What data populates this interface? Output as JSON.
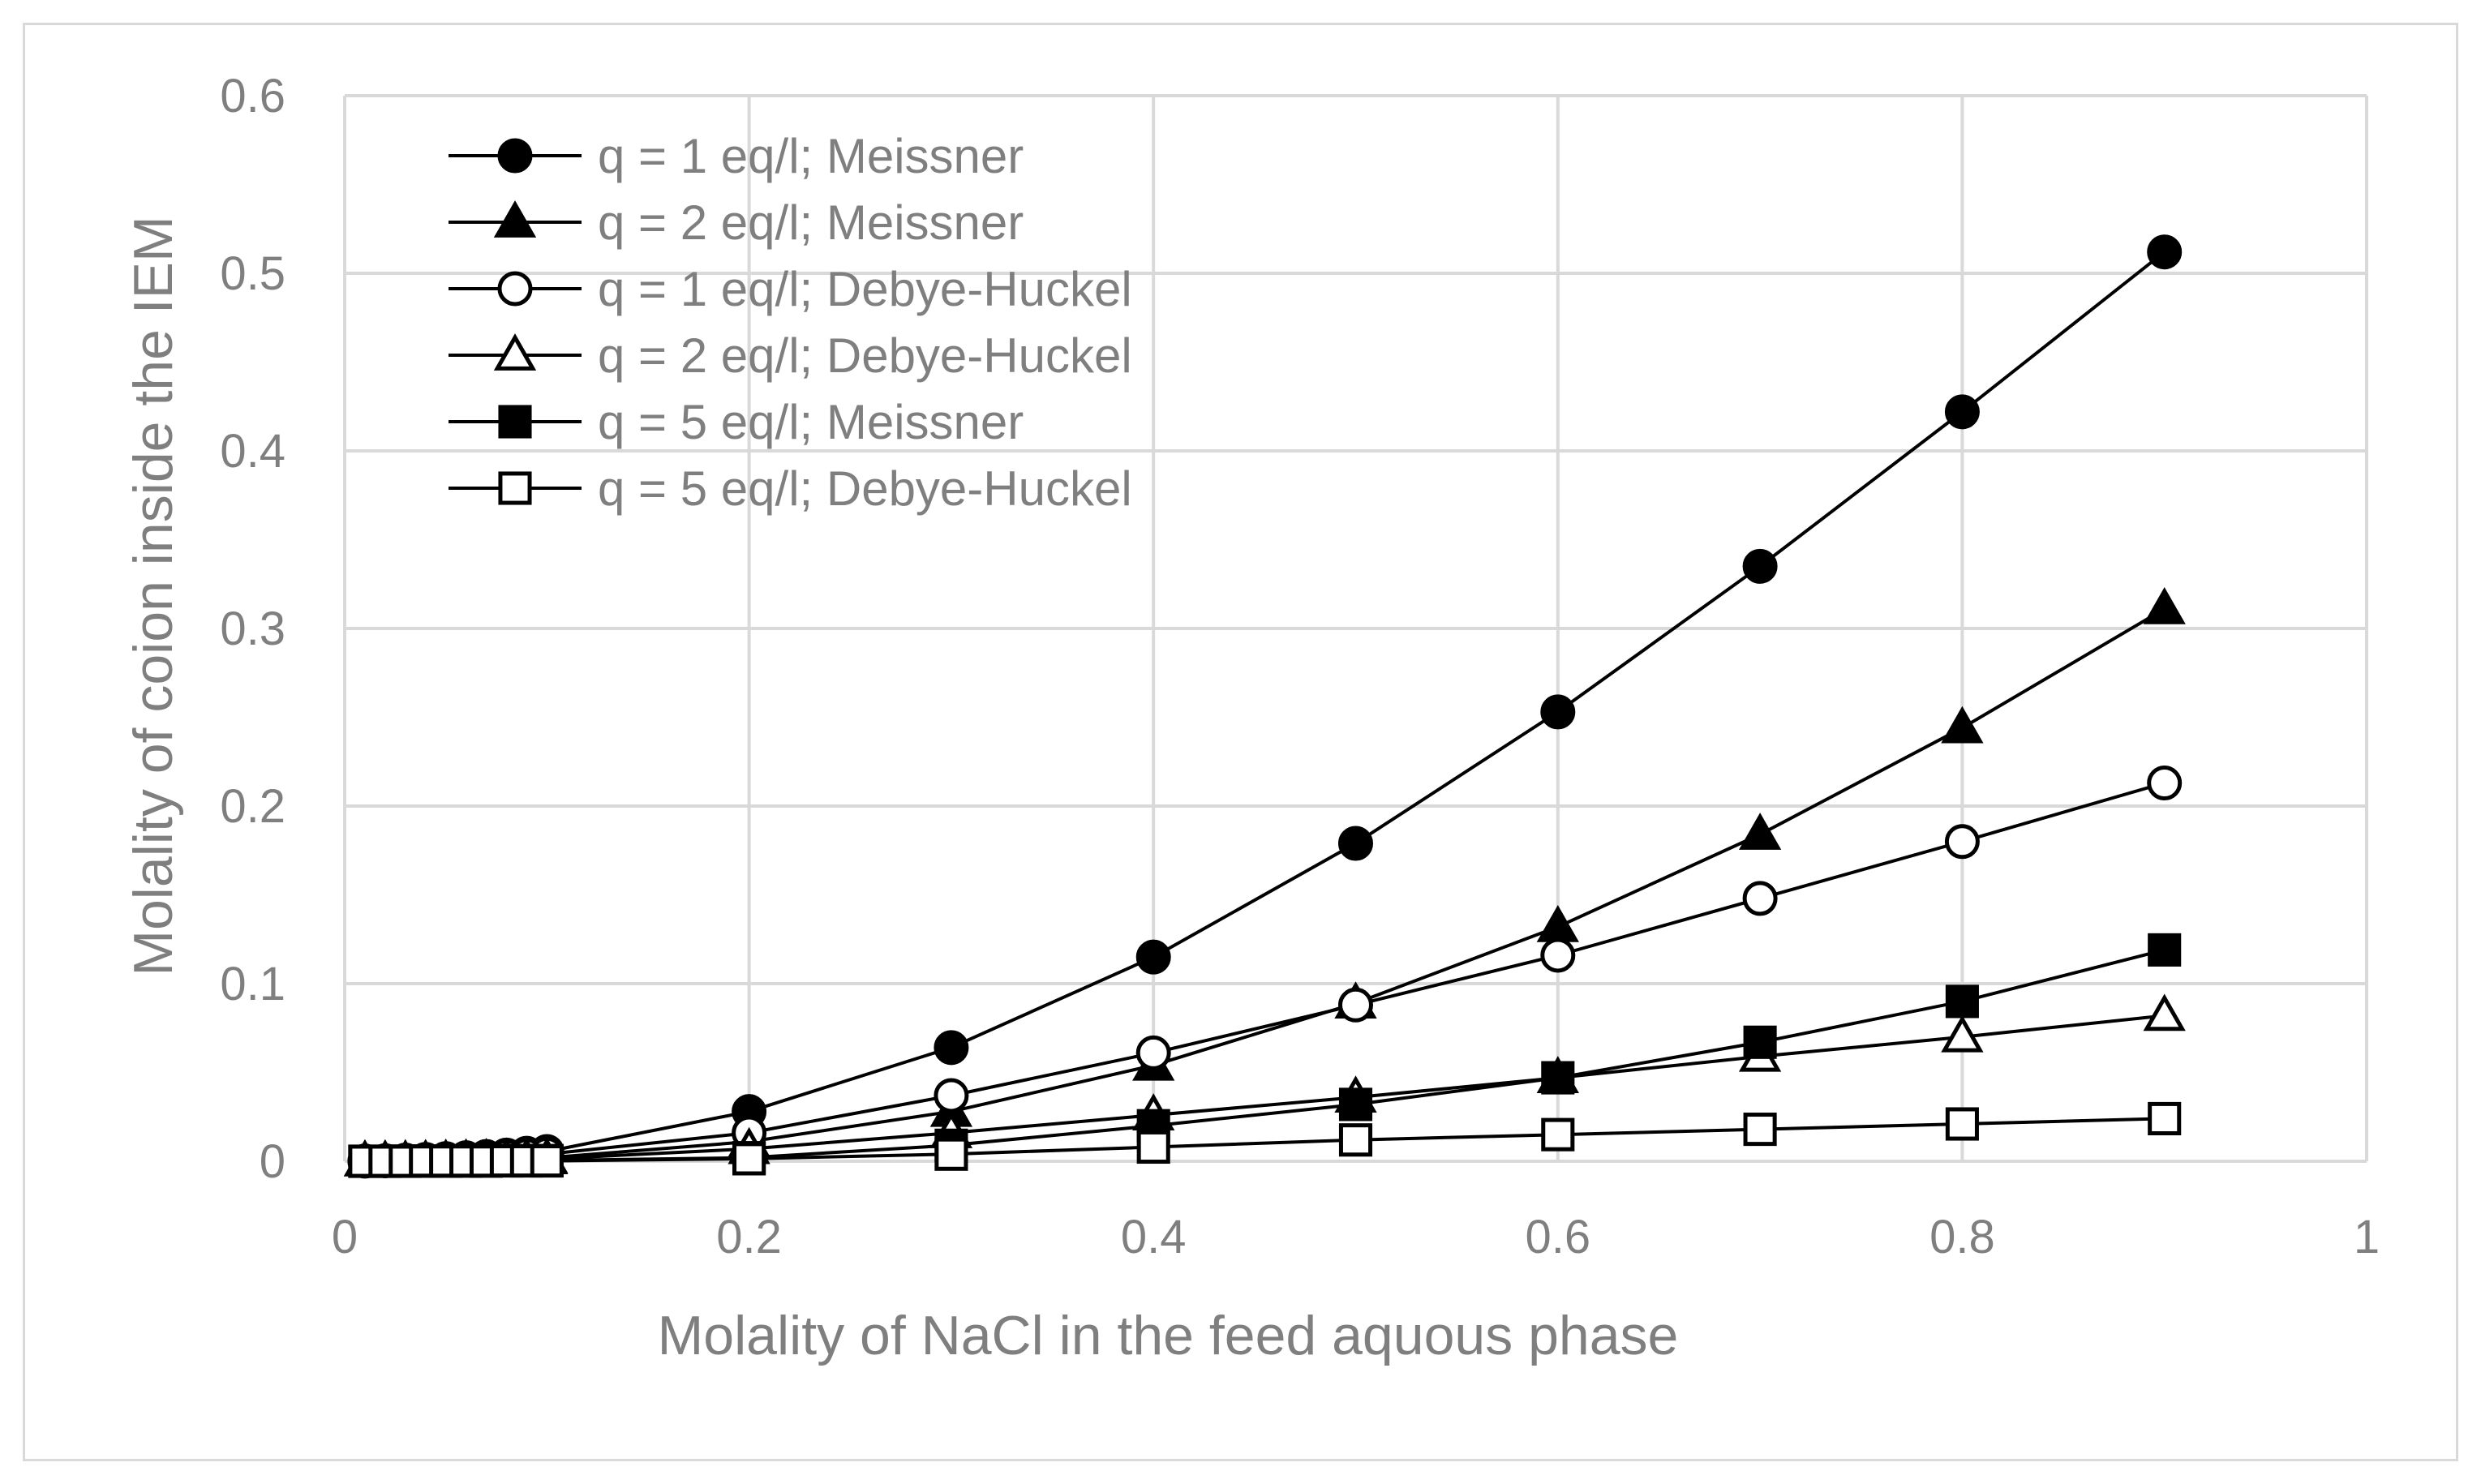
{
  "chart_data": {
    "type": "scatter",
    "title": "",
    "xlabel": "Molality of NaCl in the feed aquous phase",
    "ylabel": "Molality of coion inside the IEM",
    "xlim": [
      0,
      1
    ],
    "ylim": [
      0,
      0.6
    ],
    "xticks": [
      0,
      0.2,
      0.4,
      0.6,
      0.8,
      1
    ],
    "xtick_labels": [
      "0",
      "0.2",
      "0.4",
      "0.6",
      "0.8",
      "1"
    ],
    "yticks": [
      0,
      0.1,
      0.2,
      0.3,
      0.4,
      0.5,
      0.6
    ],
    "ytick_labels": [
      "0",
      "0.1",
      "0.2",
      "0.3",
      "0.4",
      "0.5",
      "0.6"
    ],
    "grid": true,
    "legend_position": "top-left",
    "series": [
      {
        "name": "q = 1 eq/l; Meissner",
        "marker": "circle",
        "filled": true,
        "x": [
          0.01,
          0.02,
          0.03,
          0.04,
          0.05,
          0.06,
          0.07,
          0.08,
          0.09,
          0.1,
          0.2,
          0.3,
          0.4,
          0.5,
          0.6,
          0.7,
          0.8,
          0.9
        ],
        "y": [
          0.0001,
          0.0003,
          0.0006,
          0.001,
          0.0015,
          0.002,
          0.0027,
          0.0035,
          0.0045,
          0.0055,
          0.028,
          0.064,
          0.115,
          0.179,
          0.253,
          0.335,
          0.422,
          0.512
        ]
      },
      {
        "name": "q = 2 eq/l; Meissner",
        "marker": "triangle",
        "filled": true,
        "x": [
          0.01,
          0.02,
          0.03,
          0.04,
          0.05,
          0.06,
          0.07,
          0.08,
          0.09,
          0.1,
          0.2,
          0.3,
          0.4,
          0.5,
          0.6,
          0.7,
          0.8,
          0.9
        ],
        "y": [
          0.0001,
          0.0001,
          0.0002,
          0.0003,
          0.0005,
          0.0007,
          0.0009,
          0.0012,
          0.0015,
          0.0019,
          0.011,
          0.028,
          0.054,
          0.089,
          0.132,
          0.184,
          0.244,
          0.311
        ]
      },
      {
        "name": "q = 1 eq/l; Debye-Huckel",
        "marker": "circle",
        "filled": false,
        "x": [
          0.01,
          0.02,
          0.03,
          0.04,
          0.05,
          0.06,
          0.07,
          0.08,
          0.09,
          0.1,
          0.2,
          0.3,
          0.4,
          0.5,
          0.6,
          0.7,
          0.8,
          0.9
        ],
        "y": [
          0.0001,
          0.0002,
          0.0005,
          0.0008,
          0.0012,
          0.0016,
          0.0021,
          0.0027,
          0.0033,
          0.004,
          0.016,
          0.037,
          0.061,
          0.088,
          0.116,
          0.148,
          0.18,
          0.213
        ]
      },
      {
        "name": "q = 2 eq/l; Debye-Huckel",
        "marker": "triangle",
        "filled": false,
        "x": [
          0.01,
          0.02,
          0.03,
          0.04,
          0.05,
          0.06,
          0.07,
          0.08,
          0.09,
          0.1,
          0.2,
          0.3,
          0.4,
          0.5,
          0.6,
          0.7,
          0.8,
          0.9
        ],
        "y": [
          0.0001,
          0.0001,
          0.0002,
          0.0003,
          0.0004,
          0.0005,
          0.0007,
          0.0009,
          0.0011,
          0.0013,
          0.007,
          0.016,
          0.026,
          0.036,
          0.047,
          0.059,
          0.07,
          0.082
        ]
      },
      {
        "name": "q = 5 eq/l; Meissner",
        "marker": "square",
        "filled": true,
        "x": [
          0.01,
          0.02,
          0.03,
          0.04,
          0.05,
          0.06,
          0.07,
          0.08,
          0.09,
          0.1,
          0.2,
          0.3,
          0.4,
          0.5,
          0.6,
          0.7,
          0.8,
          0.9
        ],
        "y": [
          0,
          0,
          0.0001,
          0.0001,
          0.0001,
          0.0002,
          0.0002,
          0.0003,
          0.0003,
          0.0004,
          0.002,
          0.009,
          0.02,
          0.032,
          0.047,
          0.067,
          0.09,
          0.119
        ]
      },
      {
        "name": "q = 5 eq/l; Debye-Huckel",
        "marker": "square",
        "filled": false,
        "x": [
          0.01,
          0.02,
          0.03,
          0.04,
          0.05,
          0.06,
          0.07,
          0.08,
          0.09,
          0.1,
          0.2,
          0.3,
          0.4,
          0.5,
          0.6,
          0.7,
          0.8,
          0.9
        ],
        "y": [
          0,
          0,
          0,
          0.0001,
          0.0001,
          0.0001,
          0.0001,
          0.0002,
          0.0002,
          0.0002,
          0.0014,
          0.004,
          0.008,
          0.012,
          0.015,
          0.018,
          0.021,
          0.024
        ]
      }
    ]
  },
  "colors": {
    "series_line": "#000000",
    "grid": "#d9d9d9",
    "text": "#7f7f7f",
    "frame": "#d9d9d9"
  }
}
